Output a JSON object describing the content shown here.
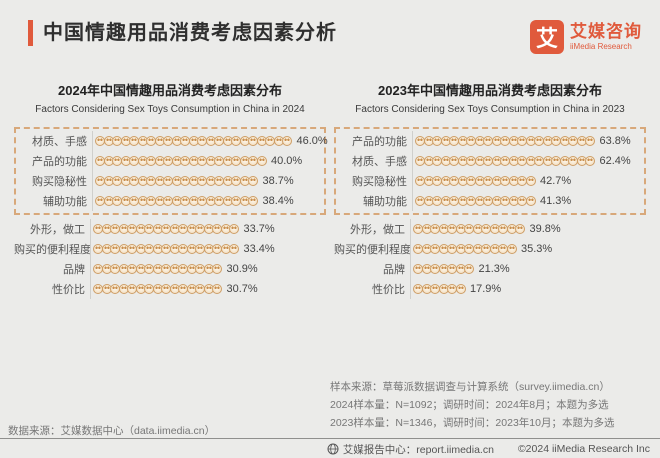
{
  "header": {
    "title": "中国情趣用品消费考虑因素分析",
    "accent_color": "#E05A3C"
  },
  "logo": {
    "glyph": "艾",
    "name": "艾媒咨询",
    "subtitle": "iiMedia Research",
    "color": "#E05A3C"
  },
  "chart_data": [
    {
      "type": "bar",
      "style": "pictogram",
      "title": "2024年中国情趣用品消费考虑因素分布",
      "subtitle": "Factors Considering Sex Toys Consumption in China in 2024",
      "categories": [
        "材质、手感",
        "产品的功能",
        "购买隐秘性",
        "辅助功能",
        "外形，做工",
        "购买的便利程度",
        "品牌",
        "性价比"
      ],
      "values": [
        46.0,
        40.0,
        38.7,
        38.4,
        33.7,
        33.4,
        30.9,
        30.7
      ],
      "unit": "%",
      "highlight_box_rows": 4,
      "percent_per_icon": 2
    },
    {
      "type": "bar",
      "style": "pictogram",
      "title": "2023年中国情趣用品消费考虑因素分布",
      "subtitle": "Factors Considering Sex Toys Consumption in China in 2023",
      "categories": [
        "产品的功能",
        "材质、手感",
        "购买隐秘性",
        "辅助功能",
        "外形，做工",
        "购买的便利程度",
        "品牌",
        "性价比"
      ],
      "values": [
        63.8,
        62.4,
        42.7,
        41.3,
        39.8,
        35.3,
        21.3,
        17.9
      ],
      "unit": "%",
      "highlight_box_rows": 4,
      "percent_per_icon": 3
    }
  ],
  "notes": {
    "sample_source": "样本来源：草莓派数据调查与计算系统（survey.iimedia.cn）",
    "sample_2024": "2024样本量：N=1092；调研时间：2024年8月；本题为多选",
    "sample_2023": "2023样本量：N=1346，调研时间：2023年10月；本题为多选",
    "data_source": "数据来源：艾媒数据中心（data.iimedia.cn）"
  },
  "footer": {
    "report_center": "艾媒报告中心：report.iimedia.cn",
    "copyright": "©2024  iiMedia Research Inc"
  },
  "colors": {
    "brand_orange": "#E05A3C",
    "icon_fill": "#F3DFC2",
    "icon_border": "#CE9E66",
    "dashed_border": "#D8A87A",
    "axis_line": "#CFCFCC",
    "background": "#EBEBE9"
  }
}
